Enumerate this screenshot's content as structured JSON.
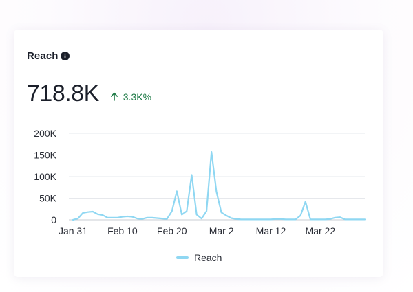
{
  "card": {
    "title": "Reach",
    "metric_value": "718.8K",
    "delta_text": "3.3K%",
    "delta_color": "#1e7a46"
  },
  "icons": {
    "info": "info-circle-icon",
    "delta": "arrow-up-icon"
  },
  "chart_data": {
    "type": "line",
    "title": "",
    "xlabel": "",
    "ylabel": "",
    "ylim": [
      0,
      200000
    ],
    "y_ticks": [
      0,
      50000,
      100000,
      150000,
      200000
    ],
    "y_tick_labels": [
      "0",
      "50K",
      "100K",
      "150K",
      "200K"
    ],
    "x_tick_labels": [
      "Jan 31",
      "Feb 10",
      "Feb 20",
      "Mar 2",
      "Mar 12",
      "Mar 22"
    ],
    "x_tick_index": [
      0,
      10,
      20,
      30,
      40,
      50
    ],
    "grid": true,
    "legend_position": "bottom",
    "series": [
      {
        "name": "Reach",
        "color": "#8fd7f2",
        "x": [
          "Jan 31",
          "Feb 1",
          "Feb 2",
          "Feb 3",
          "Feb 4",
          "Feb 5",
          "Feb 6",
          "Feb 7",
          "Feb 8",
          "Feb 9",
          "Feb 10",
          "Feb 11",
          "Feb 12",
          "Feb 13",
          "Feb 14",
          "Feb 15",
          "Feb 16",
          "Feb 17",
          "Feb 18",
          "Feb 19",
          "Feb 20",
          "Feb 21",
          "Feb 22",
          "Feb 23",
          "Feb 24",
          "Feb 25",
          "Feb 26",
          "Feb 27",
          "Feb 28",
          "Mar 1",
          "Mar 2",
          "Mar 3",
          "Mar 4",
          "Mar 5",
          "Mar 6",
          "Mar 7",
          "Mar 8",
          "Mar 9",
          "Mar 10",
          "Mar 11",
          "Mar 12",
          "Mar 13",
          "Mar 14",
          "Mar 15",
          "Mar 16",
          "Mar 17",
          "Mar 18",
          "Mar 19",
          "Mar 20",
          "Mar 21",
          "Mar 22",
          "Mar 23",
          "Mar 24",
          "Mar 25",
          "Mar 26",
          "Mar 27",
          "Mar 28",
          "Mar 29",
          "Mar 30",
          "Mar 31"
        ],
        "values": [
          0,
          3000,
          16000,
          18000,
          19000,
          13000,
          11000,
          5000,
          5000,
          5000,
          7000,
          8000,
          7000,
          3000,
          2000,
          5000,
          5000,
          4000,
          3000,
          2000,
          20000,
          66000,
          12000,
          20000,
          104000,
          12000,
          3000,
          20000,
          157000,
          65000,
          17000,
          10000,
          4000,
          2000,
          1000,
          1000,
          1000,
          1000,
          1000,
          1000,
          1000,
          2000,
          2000,
          1000,
          1000,
          1000,
          10000,
          42000,
          1000,
          1000,
          1000,
          1000,
          2000,
          5000,
          6000,
          1000,
          1000,
          1000,
          1000,
          1000
        ]
      }
    ]
  }
}
